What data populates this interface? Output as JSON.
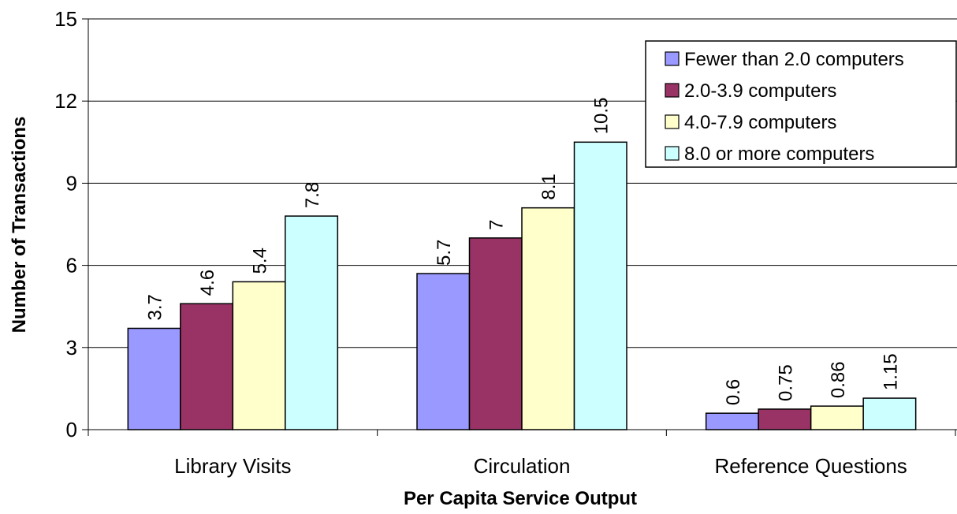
{
  "chart_data": {
    "type": "bar",
    "title": "",
    "xlabel": "Per Capita Service Output",
    "ylabel": "Number of Transactions",
    "ylim": [
      0,
      15
    ],
    "yticks": [
      0,
      3,
      6,
      9,
      12,
      15
    ],
    "categories": [
      "Library Visits",
      "Circulation",
      "Reference Questions"
    ],
    "series": [
      {
        "name": "Fewer than 2.0 computers",
        "values": [
          3.7,
          5.7,
          0.6
        ],
        "labels": [
          "3.7",
          "5.7",
          "0.6"
        ],
        "color": "#9999ff"
      },
      {
        "name": "2.0-3.9 computers",
        "values": [
          4.6,
          7,
          0.75
        ],
        "labels": [
          "4.6",
          "7",
          "0.75"
        ],
        "color": "#993366"
      },
      {
        "name": "4.0-7.9 computers",
        "values": [
          5.4,
          8.1,
          0.86
        ],
        "labels": [
          "5.4",
          "8.1",
          "0.86"
        ],
        "color": "#ffffcc"
      },
      {
        "name": "8.0 or more computers",
        "values": [
          7.8,
          10.5,
          1.15
        ],
        "labels": [
          "7.8",
          "10.5",
          "1.15"
        ],
        "color": "#ccffff"
      }
    ],
    "grid": true,
    "legend_position": "top-right"
  }
}
